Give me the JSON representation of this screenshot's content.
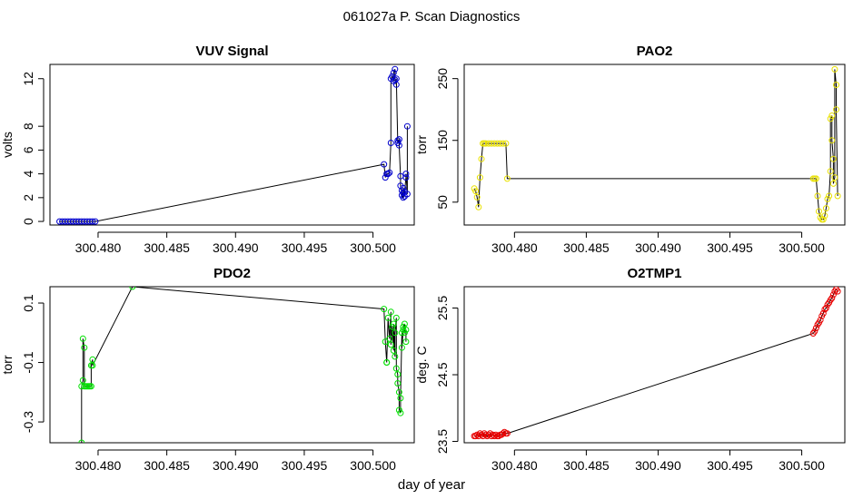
{
  "figure": {
    "title": "061027a   P. Scan Diagnostics",
    "shared_xlabel": "day of year"
  },
  "chart_data": [
    {
      "type": "scatter",
      "title": "VUV Signal",
      "xlabel": "",
      "ylabel": "volts",
      "xlim": [
        300.4765,
        300.503
      ],
      "ylim": [
        -0.3,
        13.2
      ],
      "xticks": [
        300.48,
        300.485,
        300.49,
        300.495,
        300.5
      ],
      "xtick_labels": [
        "300.480",
        "300.485",
        "300.490",
        "300.495",
        "300.500"
      ],
      "yticks": [
        0,
        2,
        4,
        6,
        8,
        12
      ],
      "ytick_labels": [
        "0",
        "2",
        "4",
        "6",
        "8",
        "12"
      ],
      "color": "#0000cc",
      "lines": true,
      "series": [
        {
          "name": "VUV Signal",
          "x": [
            300.4772,
            300.4774,
            300.4776,
            300.4778,
            300.478,
            300.4782,
            300.4784,
            300.4786,
            300.4788,
            300.479,
            300.4792,
            300.4794,
            300.4796,
            300.4798,
            300.5008,
            300.5009,
            300.501,
            300.5011,
            300.5012,
            300.5013,
            300.5013,
            300.5014,
            300.5015,
            300.5015,
            300.5016,
            300.5016,
            300.5017,
            300.5017,
            300.5018,
            300.5018,
            300.5019,
            300.5019,
            300.502,
            300.502,
            300.5021,
            300.5021,
            300.5022,
            300.5022,
            300.5022,
            300.5023,
            300.5023,
            300.5024,
            300.5024,
            300.5025,
            300.5025
          ],
          "y": [
            0,
            0,
            0,
            0,
            0,
            0,
            0,
            0,
            0,
            0,
            0,
            0,
            0,
            0,
            4.8,
            3.7,
            4.0,
            4.0,
            4.1,
            6.6,
            12.0,
            12.2,
            11.8,
            12.5,
            12.8,
            11.9,
            11.5,
            12.0,
            6.8,
            6.6,
            6.9,
            6.4,
            3.8,
            3.0,
            2.6,
            2.2,
            2.0,
            2.4,
            2.8,
            2.1,
            2.5,
            3.7,
            4.0,
            2.3,
            8.0
          ]
        }
      ]
    },
    {
      "type": "scatter",
      "title": "PAO2",
      "xlabel": "",
      "ylabel": "torr",
      "xlim": [
        300.4765,
        300.503
      ],
      "ylim": [
        13,
        273
      ],
      "xticks": [
        300.48,
        300.485,
        300.49,
        300.495,
        300.5
      ],
      "xtick_labels": [
        "300.480",
        "300.485",
        "300.490",
        "300.495",
        "300.500"
      ],
      "yticks": [
        50,
        150,
        250
      ],
      "ytick_labels": [
        "50",
        "150",
        "250"
      ],
      "color": "#e8e000",
      "lines": true,
      "series": [
        {
          "name": "PAO2",
          "x": [
            300.4772,
            300.4773,
            300.4774,
            300.4775,
            300.4776,
            300.4777,
            300.4778,
            300.4779,
            300.478,
            300.4782,
            300.4784,
            300.4786,
            300.4788,
            300.479,
            300.4792,
            300.4794,
            300.4795,
            300.5008,
            300.5009,
            300.501,
            300.5011,
            300.5012,
            300.5013,
            300.5014,
            300.5015,
            300.5016,
            300.5017,
            300.5018,
            300.5019,
            300.502,
            300.502,
            300.5021,
            300.5021,
            300.5022,
            300.5022,
            300.5023,
            300.5023,
            300.5024,
            300.5024,
            300.5025
          ],
          "y": [
            72,
            68,
            58,
            42,
            90,
            120,
            145,
            145,
            145,
            145,
            145,
            145,
            145,
            145,
            145,
            145,
            88,
            88,
            88,
            88,
            60,
            35,
            25,
            22,
            22,
            28,
            40,
            55,
            60,
            100,
            185,
            190,
            150,
            120,
            80,
            90,
            265,
            240,
            200,
            60
          ]
        }
      ]
    },
    {
      "type": "scatter",
      "title": "PDO2",
      "xlabel": "",
      "ylabel": "torr",
      "xlim": [
        300.4765,
        300.503
      ],
      "ylim": [
        -0.37,
        0.155
      ],
      "xticks": [
        300.48,
        300.485,
        300.49,
        300.495,
        300.5
      ],
      "xtick_labels": [
        "300.480",
        "300.485",
        "300.490",
        "300.495",
        "300.500"
      ],
      "yticks": [
        -0.3,
        -0.1,
        0.1
      ],
      "ytick_labels": [
        "-0.3",
        "-0.1",
        "0.1"
      ],
      "color": "#00e000",
      "lines": true,
      "series": [
        {
          "name": "PDO2",
          "x": [
            300.4788,
            300.4788,
            300.4789,
            300.4789,
            300.479,
            300.479,
            300.4791,
            300.4792,
            300.4793,
            300.4794,
            300.4795,
            300.4795,
            300.4796,
            300.4796,
            300.4825,
            300.5008,
            300.5009,
            300.501,
            300.501,
            300.5011,
            300.5012,
            300.5013,
            300.5013,
            300.5014,
            300.5015,
            300.5015,
            300.5016,
            300.5016,
            300.5017,
            300.5017,
            300.5018,
            300.5018,
            300.5019,
            300.5019,
            300.502,
            300.502,
            300.5021,
            300.5021,
            300.5022,
            300.5022,
            300.5023,
            300.5023,
            300.5024,
            300.5024
          ],
          "y": [
            -0.37,
            -0.18,
            -0.16,
            -0.02,
            -0.05,
            -0.18,
            -0.18,
            -0.18,
            -0.18,
            -0.18,
            -0.18,
            -0.11,
            -0.09,
            -0.11,
            0.155,
            0.08,
            -0.03,
            -0.1,
            -0.1,
            0.05,
            -0.02,
            0.07,
            -0.04,
            0.02,
            -0.06,
            0.03,
            -0.08,
            0.0,
            0.05,
            -0.12,
            -0.14,
            -0.17,
            -0.2,
            -0.26,
            -0.27,
            -0.22,
            0.0,
            -0.05,
            0.01,
            0.02,
            0.03,
            0.0,
            0.01,
            -0.03
          ]
        }
      ]
    },
    {
      "type": "scatter",
      "title": "O2TMP1",
      "xlabel": "",
      "ylabel": "deg. C",
      "xlim": [
        300.4765,
        300.503
      ],
      "ylim": [
        23.48,
        25.82
      ],
      "xticks": [
        300.48,
        300.485,
        300.49,
        300.495,
        300.5
      ],
      "xtick_labels": [
        "300.480",
        "300.485",
        "300.490",
        "300.495",
        "300.500"
      ],
      "yticks": [
        23.5,
        24.5,
        25.5
      ],
      "ytick_labels": [
        "23.5",
        "24.5",
        "25.5"
      ],
      "color": "#e80000",
      "lines": true,
      "series": [
        {
          "name": "O2TMP1",
          "x": [
            300.4772,
            300.4773,
            300.4774,
            300.4775,
            300.4776,
            300.4777,
            300.4778,
            300.4779,
            300.478,
            300.4781,
            300.4782,
            300.4783,
            300.4784,
            300.4785,
            300.4786,
            300.4787,
            300.4788,
            300.4789,
            300.479,
            300.4791,
            300.4792,
            300.4793,
            300.4794,
            300.4795,
            300.5008,
            300.5009,
            300.501,
            300.5011,
            300.5012,
            300.5013,
            300.5014,
            300.5015,
            300.5016,
            300.5017,
            300.5018,
            300.5019,
            300.502,
            300.5021,
            300.5022,
            300.5023,
            300.5024,
            300.5025
          ],
          "y": [
            23.58,
            23.58,
            23.6,
            23.58,
            23.62,
            23.6,
            23.58,
            23.62,
            23.6,
            23.58,
            23.6,
            23.62,
            23.58,
            23.6,
            23.58,
            23.6,
            23.58,
            23.58,
            23.6,
            23.6,
            23.62,
            23.64,
            23.62,
            23.62,
            25.12,
            25.15,
            25.2,
            25.25,
            25.28,
            25.32,
            25.38,
            25.42,
            25.48,
            25.5,
            25.55,
            25.58,
            25.62,
            25.65,
            25.7,
            25.75,
            25.78,
            25.75
          ]
        }
      ]
    }
  ]
}
